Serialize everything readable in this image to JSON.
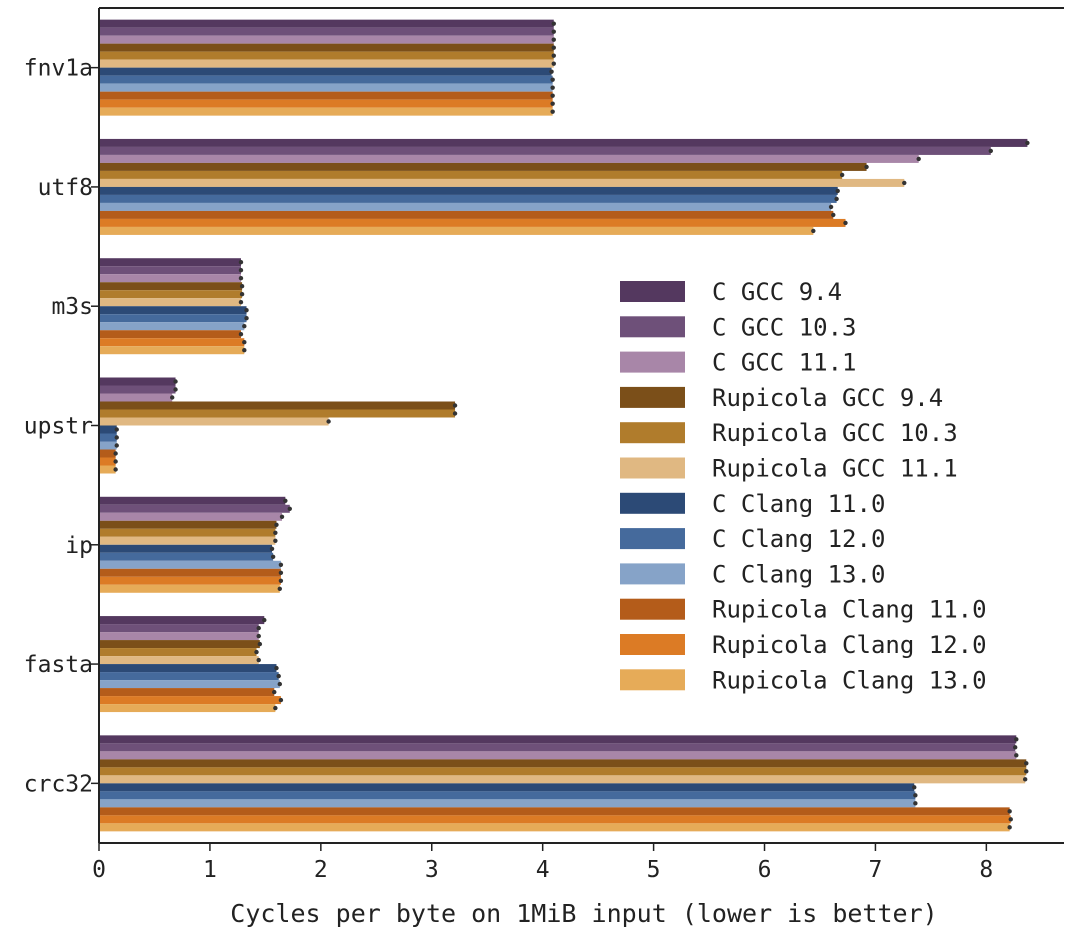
{
  "chart_data": {
    "type": "bar",
    "orientation": "horizontal",
    "title": "",
    "xlabel": "Cycles per byte on 1MiB input (lower is better)",
    "ylabel": "",
    "xlim": [
      0,
      8.7
    ],
    "xticks": [
      0,
      1,
      2,
      3,
      4,
      5,
      6,
      7,
      8
    ],
    "grid": false,
    "legend_position": "right",
    "categories": [
      "fnv1a",
      "utf8",
      "m3s",
      "upstr",
      "ip",
      "fasta",
      "crc32"
    ],
    "series": [
      {
        "name": "C GCC 9.4",
        "color": "#54385f",
        "values": [
          4.1,
          8.37,
          1.28,
          0.69,
          1.68,
          1.49,
          8.27
        ]
      },
      {
        "name": "C GCC 10.3",
        "color": "#6e5079",
        "values": [
          4.1,
          8.04,
          1.28,
          0.69,
          1.72,
          1.44,
          8.26
        ]
      },
      {
        "name": "C GCC 11.1",
        "color": "#a886a8",
        "values": [
          4.1,
          7.39,
          1.28,
          0.66,
          1.65,
          1.44,
          8.27
        ]
      },
      {
        "name": "Rupicola GCC 9.4",
        "color": "#7b4f19",
        "values": [
          4.1,
          6.92,
          1.29,
          3.21,
          1.6,
          1.45,
          8.36
        ]
      },
      {
        "name": "Rupicola GCC 10.3",
        "color": "#b07c2c",
        "values": [
          4.1,
          6.7,
          1.29,
          3.21,
          1.59,
          1.42,
          8.36
        ]
      },
      {
        "name": "Rupicola GCC 11.1",
        "color": "#e0b882",
        "values": [
          4.1,
          7.26,
          1.28,
          2.07,
          1.59,
          1.44,
          8.35
        ]
      },
      {
        "name": "C Clang 11.0",
        "color": "#2c4a76",
        "values": [
          4.08,
          6.66,
          1.33,
          0.16,
          1.56,
          1.6,
          7.35
        ]
      },
      {
        "name": "C Clang 12.0",
        "color": "#456a9c",
        "values": [
          4.09,
          6.65,
          1.33,
          0.16,
          1.57,
          1.62,
          7.36
        ]
      },
      {
        "name": "C Clang 13.0",
        "color": "#86a3c8",
        "values": [
          4.09,
          6.6,
          1.31,
          0.16,
          1.64,
          1.63,
          7.36
        ]
      },
      {
        "name": "Rupicola Clang 11.0",
        "color": "#b45c1a",
        "values": [
          4.09,
          6.62,
          1.28,
          0.15,
          1.64,
          1.58,
          8.21
        ]
      },
      {
        "name": "Rupicola Clang 12.0",
        "color": "#dc7b25",
        "values": [
          4.09,
          6.73,
          1.31,
          0.15,
          1.64,
          1.64,
          8.22
        ]
      },
      {
        "name": "Rupicola Clang 13.0",
        "color": "#e6ab58",
        "values": [
          4.09,
          6.44,
          1.31,
          0.15,
          1.63,
          1.59,
          8.21
        ]
      }
    ]
  }
}
